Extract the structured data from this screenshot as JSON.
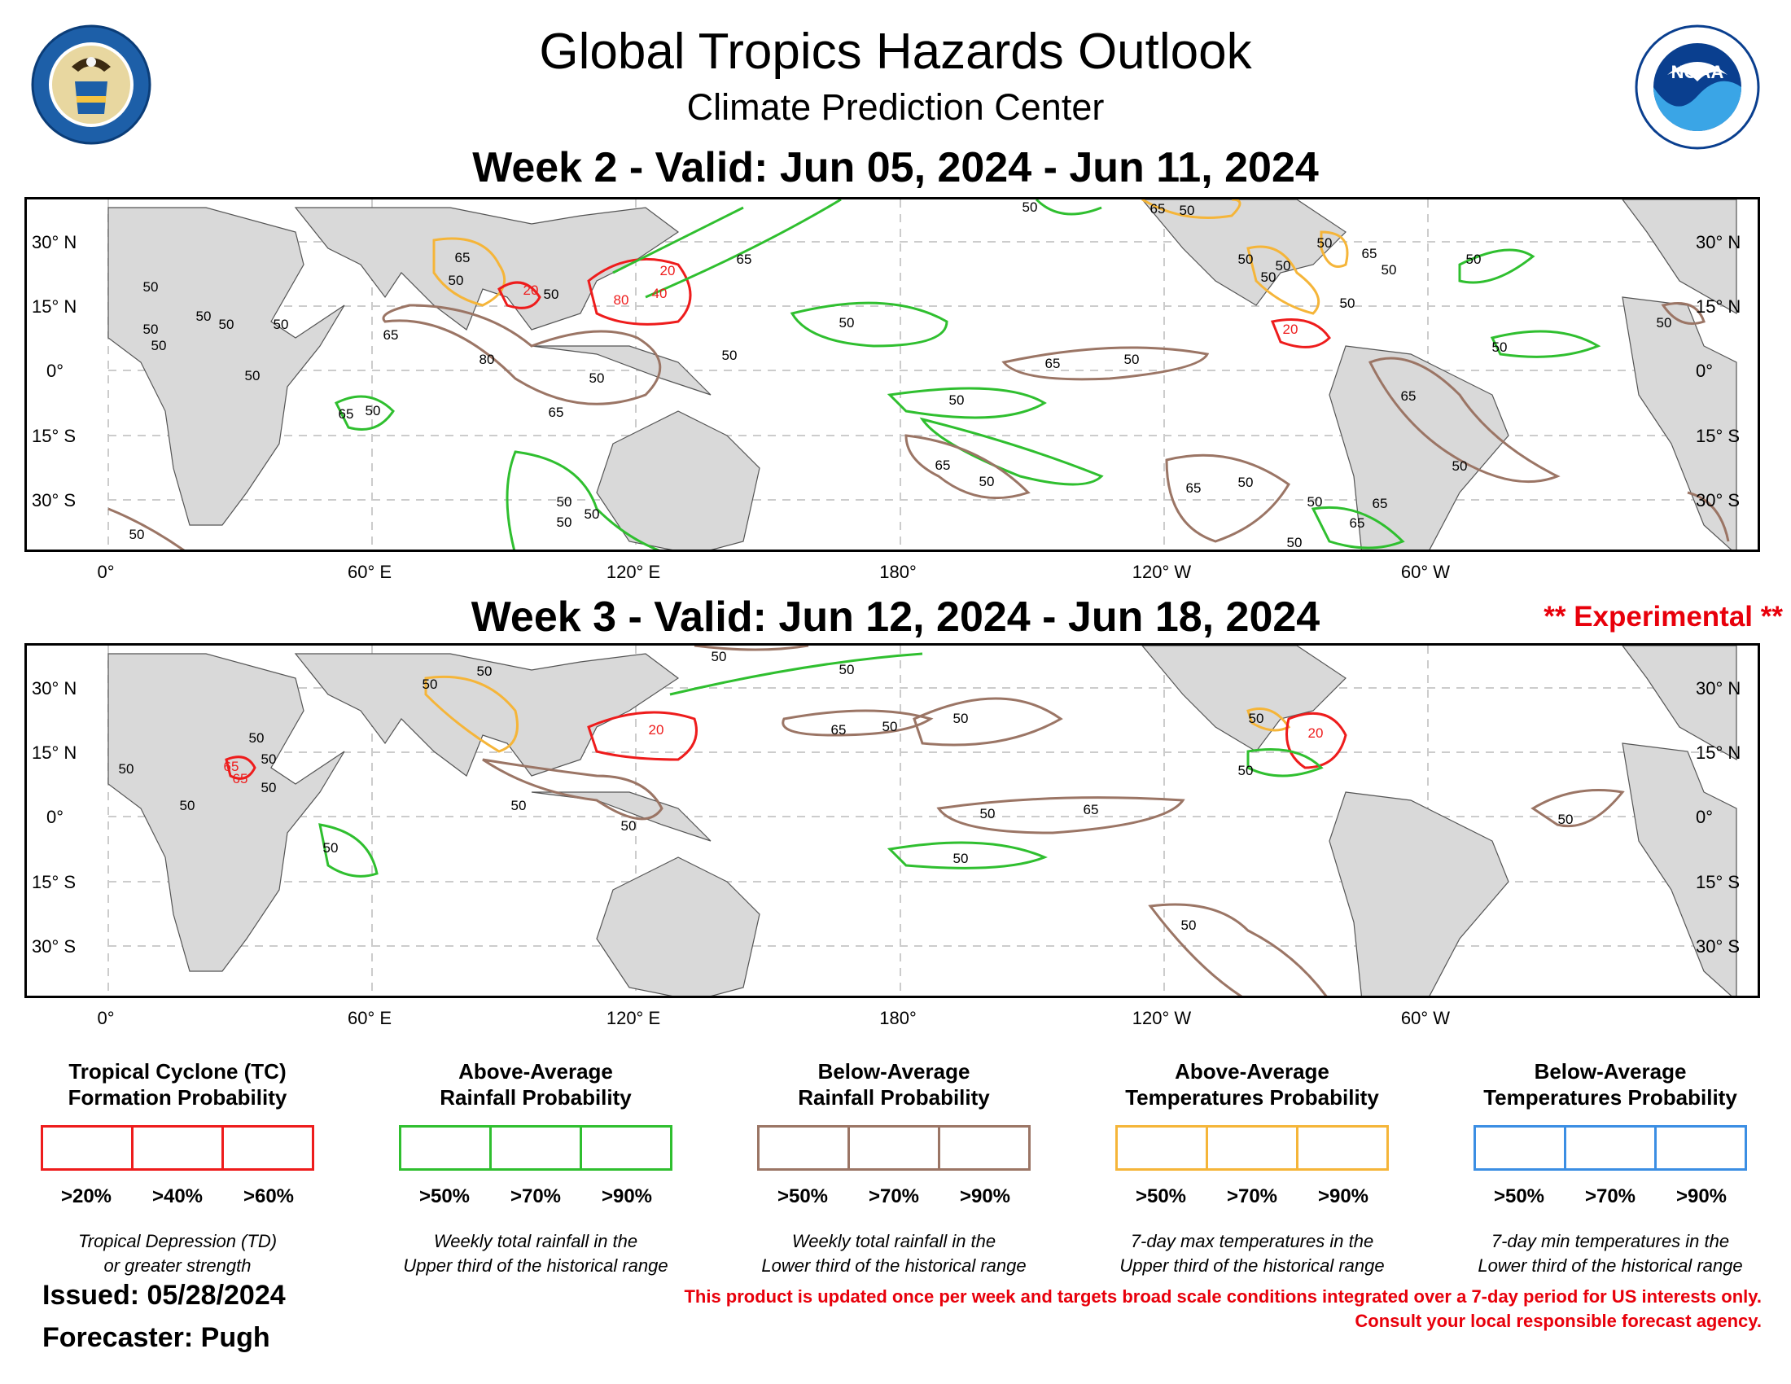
{
  "header": {
    "title": "Global Tropics Hazards Outlook",
    "subtitle": "Climate Prediction Center",
    "left_logo_text": "DEPARTMENT OF COMMERCE · UNITED STATES OF AMERICA",
    "right_logo_text": "NOAA"
  },
  "week2": {
    "title": "Week 2 - Valid: Jun 05, 2024 - Jun 11, 2024"
  },
  "week3": {
    "title": "Week 3 - Valid: Jun 12, 2024 - Jun 18, 2024",
    "experimental": "** Experimental **"
  },
  "axes": {
    "lat_left": [
      "30° N",
      "15° N",
      "0°",
      "15° S",
      "30° S"
    ],
    "lat_right": [
      "30° N",
      "15° N",
      "0°",
      "15° S",
      "30° S"
    ],
    "lon": [
      "0°",
      "60° E",
      "120° E",
      "180°",
      "120° W",
      "60° W"
    ]
  },
  "legend": [
    {
      "title_line1": "Tropical Cyclone (TC)",
      "title_line2": "Formation Probability",
      "color": "#ee1c1c",
      "ticks": [
        ">20%",
        ">40%",
        ">60%"
      ],
      "desc_line1": "Tropical Depression (TD)",
      "desc_line2": "or greater strength"
    },
    {
      "title_line1": "Above-Average",
      "title_line2": "Rainfall Probability",
      "color": "#2fbf2f",
      "ticks": [
        ">50%",
        ">70%",
        ">90%"
      ],
      "desc_line1": "Weekly total rainfall in the",
      "desc_line2": "Upper third of the historical range"
    },
    {
      "title_line1": "Below-Average",
      "title_line2": "Rainfall Probability",
      "color": "#9b7565",
      "ticks": [
        ">50%",
        ">70%",
        ">90%"
      ],
      "desc_line1": "Weekly total rainfall in the",
      "desc_line2": "Lower third of the historical range"
    },
    {
      "title_line1": "Above-Average",
      "title_line2": "Temperatures Probability",
      "color": "#f5b539",
      "ticks": [
        ">50%",
        ">70%",
        ">90%"
      ],
      "desc_line1": "7-day max temperatures in the",
      "desc_line2": "Upper third of the historical range"
    },
    {
      "title_line1": "Below-Average",
      "title_line2": "Temperatures Probability",
      "color": "#3b8ee3",
      "ticks": [
        ">50%",
        ">70%",
        ">90%"
      ],
      "desc_line1": "7-day min temperatures in the",
      "desc_line2": "Lower third of the historical range"
    }
  ],
  "footer": {
    "issued": "Issued: 05/28/2024",
    "forecaster": "Forecaster: Pugh",
    "disclaimer_line1": "This product is updated once per week and targets broad scale conditions integrated over a 7-day period for US interests only.",
    "disclaimer_line2": "Consult your local responsible forecast agency."
  },
  "contour_labels": {
    "week2": {
      "tc": [
        "20",
        "80",
        "40",
        "20",
        "20"
      ],
      "rain_above": [
        "50",
        "65",
        "50",
        "50",
        "65",
        "50",
        "50",
        "50",
        "50",
        "50",
        "65",
        "50",
        "50",
        "65",
        "50",
        "50",
        "65",
        "50"
      ],
      "rain_below": [
        "50",
        "50",
        "50",
        "50",
        "50",
        "65",
        "80",
        "65",
        "50",
        "65",
        "50",
        "65",
        "50",
        "65",
        "50",
        "65",
        "50",
        "50",
        "50",
        "50",
        "50",
        "50",
        "50"
      ],
      "temp_above": [
        "65",
        "50",
        "65",
        "50",
        "50",
        "50",
        "50",
        "50"
      ]
    },
    "week3": {
      "tc": [
        "65",
        "65",
        "20",
        "20"
      ],
      "rain_above": [
        "50",
        "50",
        "50",
        "50",
        "50",
        "50"
      ],
      "rain_below": [
        "50",
        "50",
        "50",
        "50",
        "65",
        "50",
        "50",
        "50",
        "50",
        "65",
        "50",
        "50",
        "50",
        "50"
      ],
      "temp_above": [
        "50",
        "50"
      ]
    }
  }
}
